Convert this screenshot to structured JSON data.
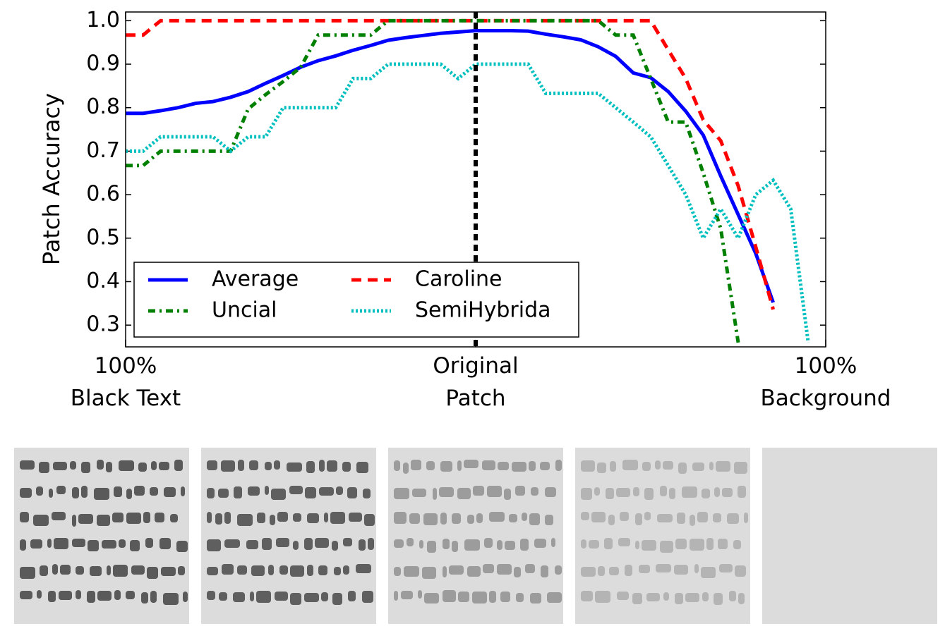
{
  "chart_data": {
    "type": "line",
    "ylabel": "Patch Accuracy",
    "x": [
      -100,
      -95,
      -90,
      -85,
      -80,
      -75,
      -70,
      -65,
      -60,
      -55,
      -50,
      -45,
      -40,
      -35,
      -30,
      -25,
      -20,
      -15,
      -10,
      -5,
      0,
      5,
      10,
      15,
      20,
      25,
      30,
      35,
      40,
      45,
      50,
      55,
      60,
      65,
      70,
      75,
      80,
      85,
      90,
      95,
      100
    ],
    "series": [
      {
        "name": "Average",
        "color": "#0000ff",
        "style": "solid",
        "values": [
          0.787,
          0.787,
          0.793,
          0.8,
          0.81,
          0.814,
          0.824,
          0.837,
          0.856,
          0.874,
          0.893,
          0.908,
          0.919,
          0.932,
          0.943,
          0.955,
          0.961,
          0.966,
          0.971,
          0.974,
          0.977,
          0.977,
          0.977,
          0.976,
          0.969,
          0.963,
          0.956,
          0.94,
          0.918,
          0.88,
          0.869,
          0.837,
          0.792,
          0.737,
          0.643,
          0.554,
          0.465,
          0.352,
          null,
          null,
          null
        ]
      },
      {
        "name": "Caroline",
        "color": "#ff0000",
        "style": "dashed",
        "values": [
          0.967,
          0.967,
          1.0,
          1.0,
          1.0,
          1.0,
          1.0,
          1.0,
          1.0,
          1.0,
          1.0,
          1.0,
          1.0,
          1.0,
          1.0,
          1.0,
          1.0,
          1.0,
          1.0,
          1.0,
          1.0,
          1.0,
          1.0,
          1.0,
          1.0,
          1.0,
          1.0,
          1.0,
          1.0,
          1.0,
          1.0,
          0.933,
          0.867,
          0.772,
          0.724,
          0.62,
          0.48,
          0.336,
          null,
          null,
          null
        ]
      },
      {
        "name": "Uncial",
        "color": "#008000",
        "style": "dashdot",
        "values": [
          0.667,
          0.667,
          0.7,
          0.7,
          0.7,
          0.7,
          0.7,
          0.797,
          0.83,
          0.86,
          0.893,
          0.967,
          0.967,
          0.967,
          0.967,
          1.0,
          1.0,
          1.0,
          1.0,
          1.0,
          1.0,
          1.0,
          1.0,
          1.0,
          1.0,
          1.0,
          1.0,
          1.0,
          0.967,
          0.967,
          0.867,
          0.767,
          0.767,
          0.65,
          0.522,
          0.26,
          null,
          null,
          null,
          null,
          null
        ]
      },
      {
        "name": "SemiHybrida",
        "color": "#00bfbf",
        "style": "dotted",
        "values": [
          0.7,
          0.7,
          0.733,
          0.733,
          0.733,
          0.733,
          0.7,
          0.733,
          0.733,
          0.8,
          0.8,
          0.8,
          0.8,
          0.867,
          0.867,
          0.9,
          0.9,
          0.9,
          0.9,
          0.867,
          0.9,
          0.9,
          0.9,
          0.9,
          0.833,
          0.833,
          0.833,
          0.833,
          0.8,
          0.767,
          0.733,
          0.667,
          0.6,
          0.5,
          0.567,
          0.5,
          0.6,
          0.633,
          0.567,
          0.26,
          null
        ]
      }
    ],
    "xlim": [
      -100,
      100
    ],
    "xticks": [
      {
        "value": -100,
        "label": "100%\nBlack Text"
      },
      {
        "value": 0,
        "label": "Original\nPatch"
      },
      {
        "value": 100,
        "label": "100%\nBackground"
      }
    ],
    "ylim": [
      0.25,
      1.02
    ],
    "yticks": [
      0.3,
      0.4,
      0.5,
      0.6,
      0.7,
      0.8,
      0.9,
      {
        "value": 1,
        "label": "1.0"
      }
    ],
    "vline": 0,
    "legend": "lower left"
  }
}
